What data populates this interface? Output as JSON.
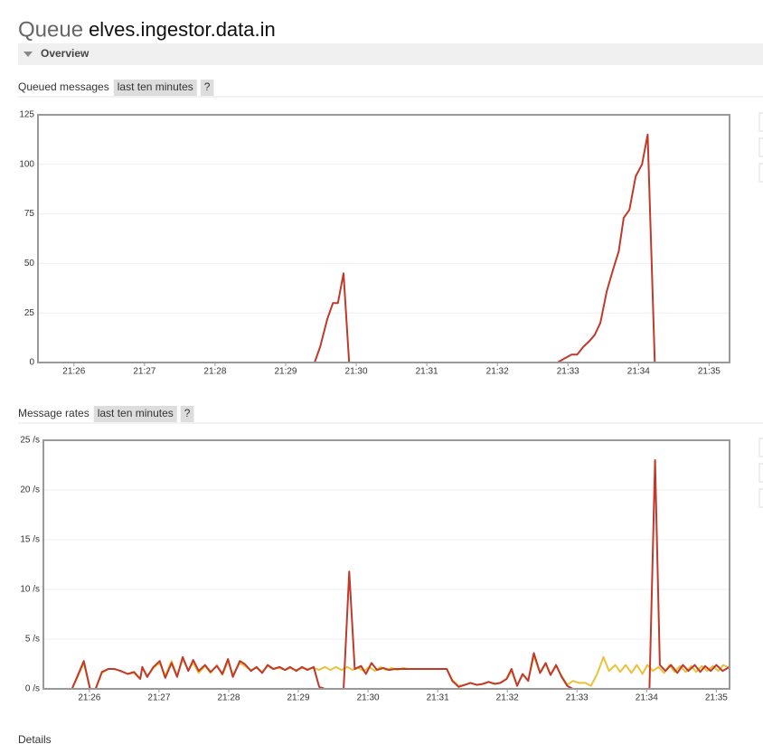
{
  "header": {
    "prefix": "Queue",
    "name": "elves.ingestor.data.in"
  },
  "section": "Overview",
  "footer": "Details",
  "chart_data": [
    {
      "type": "line",
      "title": "Queued messages",
      "range_badge": "last ten minutes",
      "help_badge": "?",
      "xlim": [
        25.49,
        35.29
      ],
      "ylim": [
        0,
        125
      ],
      "grid": true,
      "xticks": [
        {
          "value": 26,
          "label": "21:26"
        },
        {
          "value": 27,
          "label": "21:27"
        },
        {
          "value": 28,
          "label": "21:28"
        },
        {
          "value": 29,
          "label": "21:29"
        },
        {
          "value": 30,
          "label": "21:30"
        },
        {
          "value": 31,
          "label": "21:31"
        },
        {
          "value": 32,
          "label": "21:32"
        },
        {
          "value": 33,
          "label": "21:33"
        },
        {
          "value": 34,
          "label": "21:34"
        },
        {
          "value": 35,
          "label": "21:35"
        }
      ],
      "yticks": [
        0,
        25,
        50,
        75,
        100,
        125
      ],
      "series": [
        {
          "color": "#7cb5ec",
          "x": [
            25.49,
            35.29
          ],
          "values": [
            0,
            0
          ]
        },
        {
          "color": "#c0392b",
          "x": [
            25.49,
            29.41,
            29.49,
            29.59,
            29.67,
            29.74,
            29.82,
            29.9,
            32.85,
            33.05,
            33.13,
            33.22,
            33.31,
            33.38,
            33.46,
            33.55,
            33.64,
            33.72,
            33.79,
            33.87,
            33.96,
            34.05,
            34.13,
            34.23,
            35.29
          ],
          "values": [
            0,
            0,
            8,
            22,
            30,
            30,
            45,
            0,
            0,
            4,
            4,
            8,
            11,
            14,
            20,
            36,
            47,
            56,
            73,
            77,
            94,
            100,
            115,
            0,
            0
          ]
        }
      ]
    },
    {
      "type": "line",
      "title": "Message rates",
      "range_badge": "last ten minutes",
      "help_badge": "?",
      "xlim": [
        25.34,
        35.19
      ],
      "ylim": [
        0,
        25
      ],
      "grid": true,
      "xticks": [
        {
          "value": 26,
          "label": "21:26"
        },
        {
          "value": 27,
          "label": "21:27"
        },
        {
          "value": 28,
          "label": "21:28"
        },
        {
          "value": 29,
          "label": "21:29"
        },
        {
          "value": 30,
          "label": "21:30"
        },
        {
          "value": 31,
          "label": "21:31"
        },
        {
          "value": 32,
          "label": "21:32"
        },
        {
          "value": 33,
          "label": "21:33"
        },
        {
          "value": 34,
          "label": "21:34"
        },
        {
          "value": 35,
          "label": "21:35"
        }
      ],
      "yticks": [
        {
          "value": 0,
          "label": "0 /s"
        },
        {
          "value": 5,
          "label": "5 /s"
        },
        {
          "value": 10,
          "label": "10 /s"
        },
        {
          "value": 15,
          "label": "15 /s"
        },
        {
          "value": 20,
          "label": "20 /s"
        },
        {
          "value": 25,
          "label": "25 /s"
        }
      ],
      "series": [
        {
          "color": "#6c5fa8",
          "x": [
            25.34,
            35.19
          ],
          "values": [
            0,
            0
          ]
        },
        {
          "color": "#e8c23a",
          "x": [
            25.34,
            25.75,
            25.83,
            25.92,
            26.01,
            26.09,
            26.18,
            26.27,
            26.36,
            26.45,
            26.55,
            26.64,
            26.73,
            26.76,
            26.83,
            26.92,
            27.01,
            27.09,
            27.18,
            27.26,
            27.34,
            27.42,
            27.49,
            27.57,
            27.66,
            27.74,
            27.83,
            27.91,
            27.99,
            28.06,
            28.16,
            28.23,
            28.32,
            28.4,
            28.48,
            28.56,
            28.64,
            28.73,
            28.81,
            28.88,
            28.97,
            29.05,
            29.13,
            29.22,
            29.3,
            29.38,
            29.46,
            29.54,
            29.62,
            29.7,
            29.78,
            29.86,
            29.94,
            30.02,
            30.1,
            30.18,
            30.26,
            30.34,
            30.42,
            30.5,
            30.58,
            31.13,
            31.21,
            31.3,
            31.39,
            31.47,
            31.56,
            31.65,
            31.73,
            31.82,
            31.9,
            31.99,
            32.06,
            32.14,
            32.22,
            32.3,
            32.38,
            32.47,
            32.55,
            32.62,
            32.7,
            32.78,
            32.86,
            32.94,
            33.03,
            33.12,
            33.2,
            33.29,
            33.38,
            33.46,
            33.55,
            33.62,
            33.7,
            33.78,
            33.86,
            33.94,
            34.01,
            34.09,
            34.17,
            34.25,
            34.33,
            34.4,
            34.48,
            34.56,
            34.64,
            34.71,
            34.79,
            34.87,
            34.95,
            35.03,
            35.1,
            35.19
          ],
          "values": [
            0,
            0,
            1.2,
            2.6,
            0,
            0,
            1.6,
            2,
            2,
            1.8,
            1.5,
            1.6,
            1,
            2.1,
            1.3,
            2.1,
            2.6,
            1.3,
            2.8,
            1.3,
            3,
            1.9,
            2.6,
            1.6,
            2.3,
            1.6,
            2.4,
            1.4,
            2.8,
            1.4,
            2.6,
            2.3,
            1.9,
            2.1,
            1.7,
            2.3,
            2,
            2.1,
            1.9,
            2.1,
            1.9,
            2.1,
            2,
            2.1,
            1.9,
            2.2,
            1.9,
            2.2,
            1.9,
            2.2,
            1.9,
            2.1,
            1.8,
            2.2,
            1.8,
            2.2,
            1.9,
            2.1,
            1.9,
            2.1,
            2,
            2,
            0.9,
            0.3,
            0.4,
            0.6,
            0.4,
            0.5,
            0.7,
            0.5,
            0.6,
            1,
            1.8,
            0.4,
            1.4,
            0.9,
            3.3,
            1.6,
            2.5,
            1.4,
            2.3,
            1.3,
            0.4,
            0.8,
            0.6,
            0.6,
            0.3,
            1.5,
            3.2,
            1.8,
            2.4,
            1.7,
            2.4,
            1.6,
            2.4,
            1.5,
            2.4,
            1.8,
            2.2,
            1.6,
            2.4,
            1.7,
            2.3,
            1.7,
            2.3,
            1.7,
            2.3,
            1.8,
            2.3,
            1.8,
            2.4,
            2.1
          ]
        },
        {
          "color": "#c0392b",
          "x": [
            25.34,
            25.75,
            25.83,
            25.92,
            26.01,
            26.09,
            26.18,
            26.27,
            26.36,
            26.45,
            26.55,
            26.64,
            26.73,
            26.76,
            26.83,
            26.92,
            27.01,
            27.09,
            27.18,
            27.26,
            27.34,
            27.42,
            27.49,
            27.57,
            27.66,
            27.74,
            27.83,
            27.91,
            27.99,
            28.06,
            28.16,
            28.23,
            28.32,
            28.4,
            28.48,
            28.56,
            28.64,
            28.73,
            28.81,
            28.88,
            28.97,
            29.05,
            29.13,
            29.22,
            29.3,
            29.38,
            29.65,
            29.73,
            29.81,
            29.9,
            29.97,
            30.05,
            30.13,
            30.22,
            30.3,
            30.39,
            30.47,
            30.55,
            31.13,
            31.21,
            31.3,
            31.39,
            31.47,
            31.56,
            31.65,
            31.73,
            31.82,
            31.9,
            31.99,
            32.06,
            32.14,
            32.22,
            32.3,
            32.38,
            32.47,
            32.55,
            32.62,
            32.7,
            32.78,
            32.86,
            32.94,
            34.04,
            34.12,
            34.19,
            34.27,
            34.35,
            34.44,
            34.52,
            34.6,
            34.69,
            34.77,
            34.84,
            34.92,
            35.0,
            35.09,
            35.19
          ],
          "values": [
            0,
            0,
            1.3,
            2.8,
            0,
            0,
            1.7,
            2,
            2,
            1.8,
            1.5,
            1.7,
            1,
            2.2,
            1.2,
            2.2,
            2.8,
            1.1,
            2.6,
            1.2,
            3.2,
            1.8,
            2.9,
            1.8,
            2.4,
            1.7,
            2.3,
            1.5,
            3,
            1.2,
            2.8,
            2.5,
            1.8,
            2.2,
            1.6,
            2.4,
            2,
            2.2,
            1.9,
            2.2,
            1.8,
            2.2,
            1.9,
            2.2,
            0.2,
            0,
            0,
            11.8,
            2,
            2.3,
            1.5,
            2.6,
            1.9,
            2.1,
            1.9,
            2,
            2,
            2,
            2,
            0.8,
            0.2,
            0.4,
            0.6,
            0.4,
            0.5,
            0.7,
            0.5,
            0.6,
            1,
            2,
            0.3,
            1.5,
            0.8,
            3.6,
            1.6,
            2.6,
            1.4,
            2.4,
            1.2,
            0.3,
            0,
            0,
            23,
            2.4,
            1.8,
            2.4,
            1.6,
            2.4,
            1.8,
            2.4,
            1.7,
            2.3,
            1.8,
            2.4,
            1.8,
            2.2
          ]
        }
      ]
    }
  ]
}
